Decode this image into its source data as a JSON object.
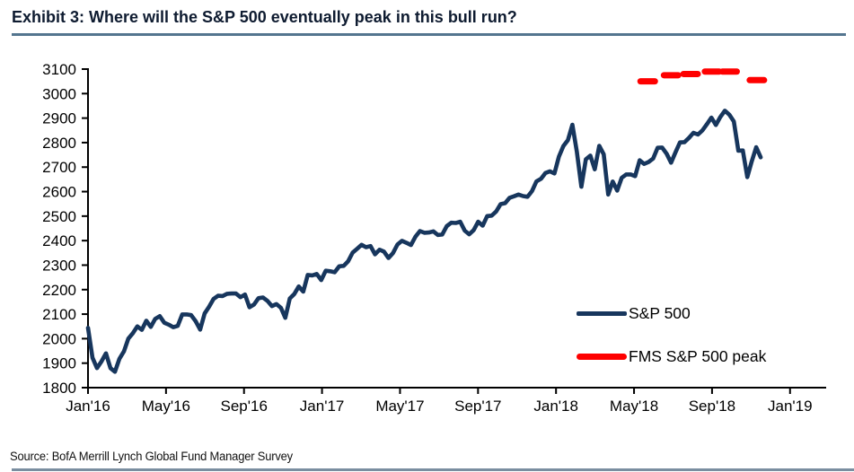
{
  "title": "Exhibit 3: Where will the S&P 500 eventually peak in this bull run?",
  "source": "Source: BofA Merrill Lynch Global Fund Manager Survey",
  "colors": {
    "title_rule": "#54758f",
    "bottom_rule": "#7a8ea0",
    "sp500_line": "#17365d",
    "fms_peak": "#fe0000",
    "axis": "#000000"
  },
  "legend": [
    {
      "label": "S&P 500",
      "color": "#17365d"
    },
    {
      "label": "FMS S&P 500 peak",
      "color": "#fe0000"
    }
  ],
  "chart_data": {
    "type": "line",
    "title": "Exhibit 3: Where will the S&P 500 eventually peak in this bull run?",
    "grid": false,
    "legend_position": "inside-right",
    "x_axis": {
      "tick_labels": [
        "Jan'16",
        "May'16",
        "Sep'16",
        "Jan'17",
        "May'17",
        "Sep'17",
        "Jan'18",
        "May'18",
        "Sep'18",
        "Jan'19"
      ],
      "tick_months": [
        0,
        4,
        8,
        12,
        16,
        20,
        24,
        28,
        32,
        36
      ]
    },
    "y_axis": {
      "min": 1800,
      "max": 3100,
      "step": 100
    },
    "series": [
      {
        "name": "S&P 500",
        "color": "#17365d",
        "frequency": "weekly",
        "start": "Jan'16",
        "end": "Nov'18",
        "values": [
          2044,
          1922,
          1880,
          1907,
          1940,
          1880,
          1865,
          1918,
          1948,
          2000,
          2022,
          2050,
          2036,
          2073,
          2048,
          2081,
          2092,
          2065,
          2057,
          2047,
          2052,
          2099,
          2099,
          2096,
          2071,
          2037,
          2103,
          2130,
          2162,
          2175,
          2174,
          2183,
          2184,
          2184,
          2169,
          2180,
          2128,
          2139,
          2165,
          2168,
          2154,
          2133,
          2141,
          2126,
          2085,
          2164,
          2182,
          2213,
          2192,
          2260,
          2258,
          2264,
          2239,
          2277,
          2275,
          2271,
          2295,
          2297,
          2316,
          2351,
          2367,
          2383,
          2373,
          2378,
          2344,
          2363,
          2355,
          2329,
          2349,
          2384,
          2399,
          2391,
          2382,
          2416,
          2439,
          2432,
          2433,
          2438,
          2423,
          2425,
          2459,
          2473,
          2472,
          2477,
          2441,
          2426,
          2443,
          2477,
          2461,
          2500,
          2502,
          2519,
          2549,
          2553,
          2575,
          2581,
          2588,
          2582,
          2579,
          2602,
          2642,
          2652,
          2676,
          2683,
          2674,
          2743,
          2786,
          2810,
          2873,
          2762,
          2620,
          2732,
          2747,
          2691,
          2787,
          2752,
          2588,
          2641,
          2604,
          2656,
          2670,
          2670,
          2663,
          2728,
          2713,
          2721,
          2735,
          2779,
          2780,
          2755,
          2718,
          2760,
          2801,
          2802,
          2819,
          2840,
          2833,
          2850,
          2875,
          2902,
          2872,
          2905,
          2930,
          2914,
          2886,
          2767,
          2768,
          2659,
          2723,
          2781,
          2740
        ]
      },
      {
        "name": "FMS S&P 500 peak",
        "color": "#fe0000",
        "style": "dash-markers",
        "points": [
          {
            "survey": "Jun'18",
            "m": 28.7,
            "value": 3050
          },
          {
            "survey": "Jul'18",
            "m": 29.9,
            "value": 3075
          },
          {
            "survey": "Aug'18",
            "m": 30.9,
            "value": 3080
          },
          {
            "survey": "Sep'18",
            "m": 32.0,
            "value": 3090
          },
          {
            "survey": "Oct'18",
            "m": 32.9,
            "value": 3090
          },
          {
            "survey": "Nov'18",
            "m": 34.3,
            "value": 3055
          }
        ]
      }
    ]
  }
}
